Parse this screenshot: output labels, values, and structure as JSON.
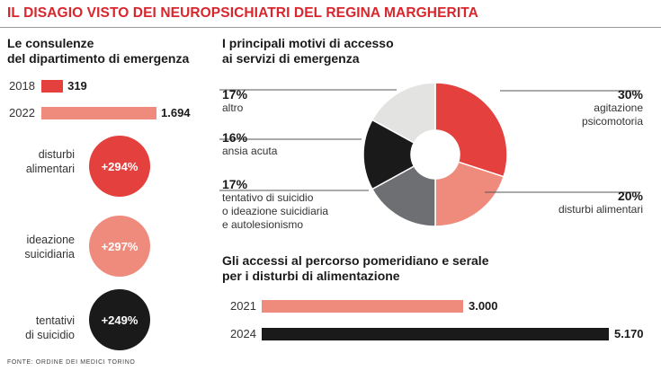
{
  "title": "IL DISAGIO VISTO DEI NEUROPSICHIATRI DEL REGINA MARGHERITA",
  "colors": {
    "red": "#e4403d",
    "salmon": "#ef8b7c",
    "black": "#1a1a1a",
    "gray": "#6e6f72",
    "lightgray": "#e3e3e1"
  },
  "left_title_line1": "Le consulenze",
  "left_title_line2": "del dipartimento di emergenza",
  "circles": [
    {
      "label_line1": "disturbi",
      "label_line2": "alimentari",
      "value": "+294%"
    },
    {
      "label_line1": "ideazione",
      "label_line2": "suicidiaria",
      "value": "+297%"
    },
    {
      "label_line1": "tentativi",
      "label_line2": "di suicidio",
      "value": "+249%"
    }
  ],
  "pie_title_line1": "I principali motivi di accesso",
  "pie_title_line2": "ai servizi di emergenza",
  "pie_labels": {
    "altro": {
      "pct": "17%",
      "line1": "altro"
    },
    "ansia": {
      "pct": "16%",
      "line1": "ansia acuta"
    },
    "tentativo": {
      "pct": "17%",
      "line1": "tentativo di suicidio",
      "line2": "o ideazione suicidiaria",
      "line3": "e autolesionismo"
    },
    "agitazione": {
      "pct": "30%",
      "line1": "agitazione",
      "line2": "psicomotoria"
    },
    "disturbi": {
      "pct": "20%",
      "line1": "disturbi alimentari"
    }
  },
  "bottom_title_line1": "Gli accessi al percorso pomeridiano e serale",
  "bottom_title_line2": "per i disturbi di alimentazione",
  "source": "FONTE: ORDINE DEI MEDICI TORINO",
  "chart_data": [
    {
      "type": "bar",
      "title": "Le consulenze del dipartimento di emergenza",
      "categories": [
        "2018",
        "2022"
      ],
      "values": [
        319,
        1694
      ],
      "value_labels": [
        "319",
        "1.694"
      ],
      "colors": [
        "#e4403d",
        "#ef8b7c"
      ]
    },
    {
      "type": "pie",
      "title": "I principali motivi di accesso ai servizi di emergenza",
      "categories": [
        "agitazione psicomotoria",
        "disturbi alimentari",
        "tentativo di suicidio o ideazione suicidiaria e autolesionismo",
        "ansia acuta",
        "altro"
      ],
      "values": [
        30,
        20,
        17,
        16,
        17
      ],
      "colors": [
        "#e4403d",
        "#ef8b7c",
        "#6e6f72",
        "#1a1a1a",
        "#e3e3e1"
      ]
    },
    {
      "type": "bar",
      "title": "Gli accessi al percorso pomeridiano e serale per i disturbi di alimentazione",
      "categories": [
        "2021",
        "2024"
      ],
      "values": [
        3000,
        5170
      ],
      "value_labels": [
        "3.000",
        "5.170"
      ],
      "colors": [
        "#ef8b7c",
        "#1a1a1a"
      ]
    }
  ]
}
